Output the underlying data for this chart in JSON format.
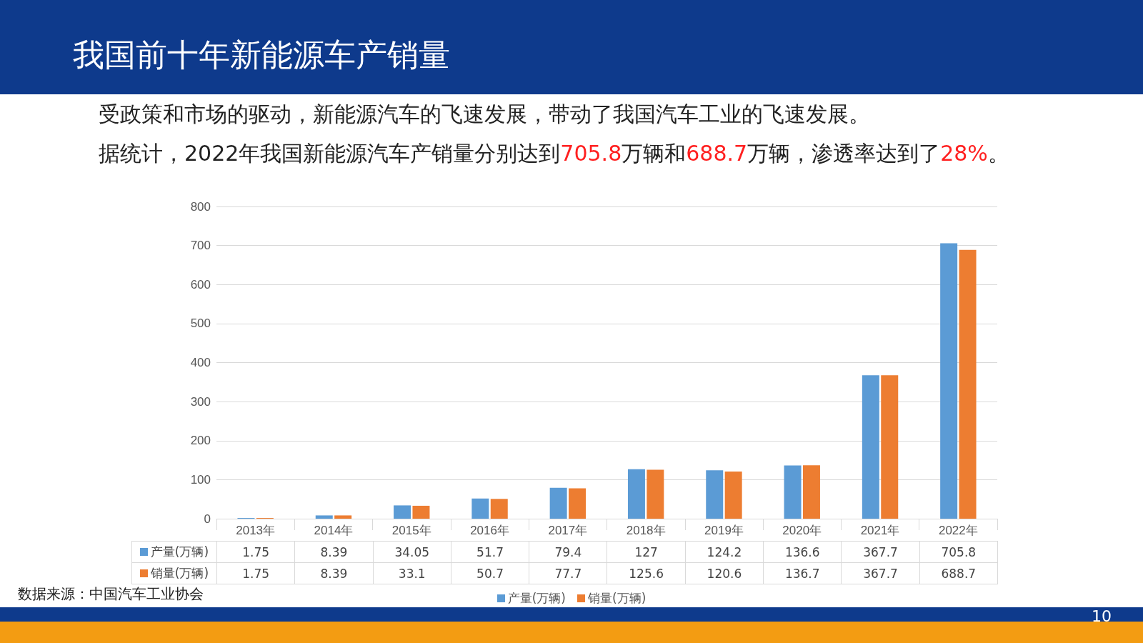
{
  "chart_data": {
    "type": "bar",
    "title": "我国前十年新能源车产销量",
    "subtitle": "受政策和市场的驱动，新能源汽车的飞速发展，带动了我国汽车工业的飞速发展。",
    "annotations": [
      "据统计，2022年我国新能源汽车产销量分别达到705.8万辆和688.7万辆，渗透率达到了28%。",
      "数据来源：中国汽车工业协会",
      "10"
    ],
    "categories": [
      "2013年",
      "2014年",
      "2015年",
      "2016年",
      "2017年",
      "2018年",
      "2019年",
      "2020年",
      "2021年",
      "2022年"
    ],
    "series": [
      {
        "name": "产量(万辆)",
        "color": "#5b9bd5",
        "values": [
          1.75,
          8.39,
          34.05,
          51.7,
          79.4,
          127,
          124.2,
          136.6,
          367.7,
          705.8
        ]
      },
      {
        "name": "销量(万辆)",
        "color": "#ed7d31",
        "values": [
          1.75,
          8.39,
          33.1,
          50.7,
          77.7,
          125.6,
          120.6,
          136.7,
          367.7,
          688.7
        ]
      }
    ],
    "ylim": [
      0,
      800
    ],
    "yticks": [
      0,
      100,
      200,
      300,
      400,
      500,
      600,
      700,
      800
    ],
    "grid": "y",
    "legend": "bottom",
    "data_labels": true
  }
}
